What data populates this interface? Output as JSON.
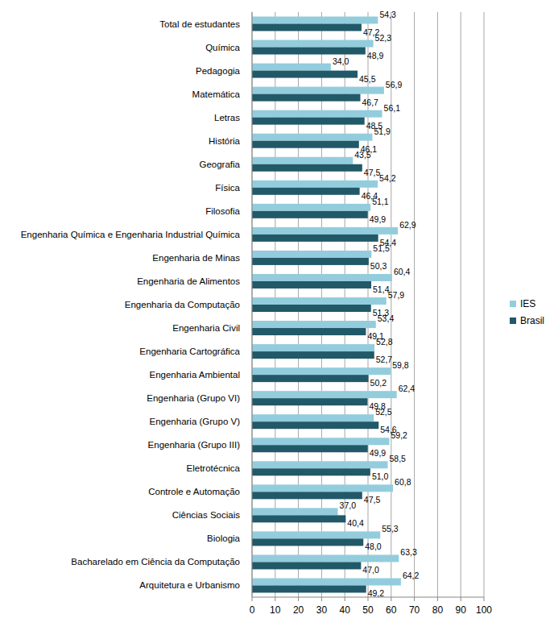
{
  "chart_data": {
    "type": "bar",
    "orientation": "horizontal",
    "categories": [
      "Total de estudantes",
      "Química",
      "Pedagogia",
      "Matemática",
      "Letras",
      "História",
      "Geografia",
      "Física",
      "Filosofia",
      "Engenharia Química e Engenharia Industrial Química",
      "Engenharia de Minas",
      "Engenharia de Alimentos",
      "Engenharia da Computação",
      "Engenharia Civil",
      "Engenharia Cartográfica",
      "Engenharia Ambiental",
      "Engenharia (Grupo VI)",
      "Engenharia (Grupo V)",
      "Engenharia (Grupo III)",
      "Eletrotécnica",
      "Controle e Automação",
      "Ciências Sociais",
      "Biologia",
      "Bacharelado em Ciência da Computação",
      "Arquitetura e Urbanismo"
    ],
    "series": [
      {
        "name": "IES",
        "color": "#93cddd",
        "values": [
          54.3,
          52.3,
          34.0,
          56.9,
          56.1,
          51.9,
          43.5,
          54.2,
          51.1,
          62.9,
          51.5,
          60.4,
          57.9,
          53.4,
          52.8,
          59.8,
          62.4,
          52.5,
          59.2,
          58.5,
          60.8,
          37.0,
          55.3,
          63.3,
          64.2
        ],
        "value_labels": [
          "54,3",
          "52,3",
          "34,0",
          "56,9",
          "56,1",
          "51,9",
          "43,5",
          "54,2",
          "51,1",
          "62,9",
          "51,5",
          "60,4",
          "57,9",
          "53,4",
          "52,8",
          "59,8",
          "62,4",
          "52,5",
          "59,2",
          "58,5",
          "60,8",
          "37,0",
          "55,3",
          "63,3",
          "64,2"
        ]
      },
      {
        "name": "Brasil",
        "color": "#215968",
        "values": [
          47.2,
          48.9,
          45.5,
          46.7,
          48.5,
          46.1,
          47.5,
          46.4,
          49.9,
          54.4,
          50.3,
          51.4,
          51.3,
          49.1,
          52.7,
          50.2,
          49.8,
          54.6,
          49.9,
          51.0,
          47.5,
          40.4,
          48.0,
          47.0,
          49.2
        ],
        "value_labels": [
          "47,2",
          "48,9",
          "45,5",
          "46,7",
          "48,5",
          "46,1",
          "47,5",
          "46,4",
          "49,9",
          "54,4",
          "50,3",
          "51,4",
          "51,3",
          "49,1",
          "52,7",
          "50,2",
          "49,8",
          "54,6",
          "49,9",
          "51,0",
          "47,5",
          "40,4",
          "48,0",
          "47,0",
          "49,2"
        ]
      }
    ],
    "xlim": [
      0,
      100
    ],
    "xticks": [
      0,
      10,
      20,
      30,
      40,
      50,
      60,
      70,
      80,
      90,
      100
    ],
    "grid": true,
    "data_labels": true,
    "legend": "right"
  }
}
